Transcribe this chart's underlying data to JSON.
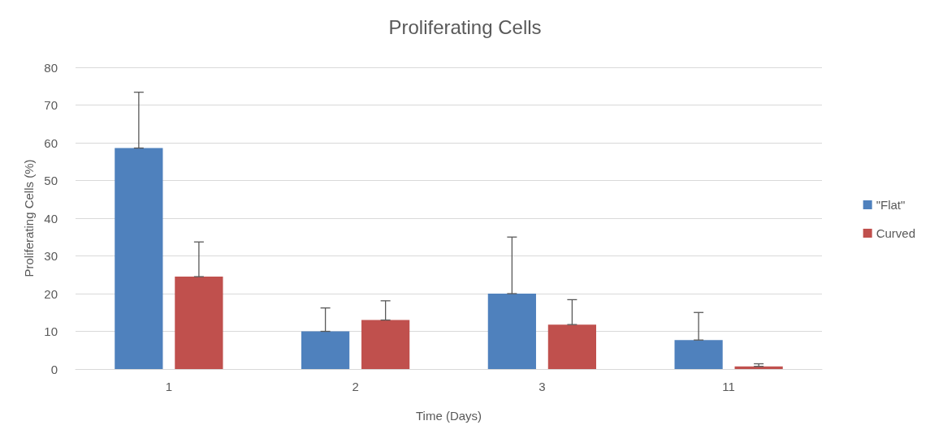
{
  "chart_data": {
    "type": "bar",
    "title": "Proliferating Cells",
    "xlabel": "Time (Days)",
    "ylabel": "Proliferating Cells (%)",
    "categories": [
      "1",
      "2",
      "3",
      "11"
    ],
    "series": [
      {
        "name": "\"Flat\"",
        "color": "#4f81bd",
        "values": [
          58.6,
          10,
          20,
          7.7
        ],
        "errors": [
          [
            58.6,
            73.4
          ],
          [
            10,
            16.2
          ],
          [
            20,
            35
          ],
          [
            7.7,
            15
          ]
        ]
      },
      {
        "name": "Curved",
        "color": "#c0504d",
        "values": [
          24.5,
          13,
          11.8,
          0.7
        ],
        "errors": [
          [
            24.5,
            33.7
          ],
          [
            13,
            18.1
          ],
          [
            11.8,
            18.4
          ],
          [
            0.7,
            1.4
          ]
        ]
      }
    ],
    "ylim": [
      0,
      80
    ],
    "yticks": [
      0,
      10,
      20,
      30,
      40,
      50,
      60,
      70,
      80
    ],
    "grid": "y",
    "legend": "right"
  }
}
